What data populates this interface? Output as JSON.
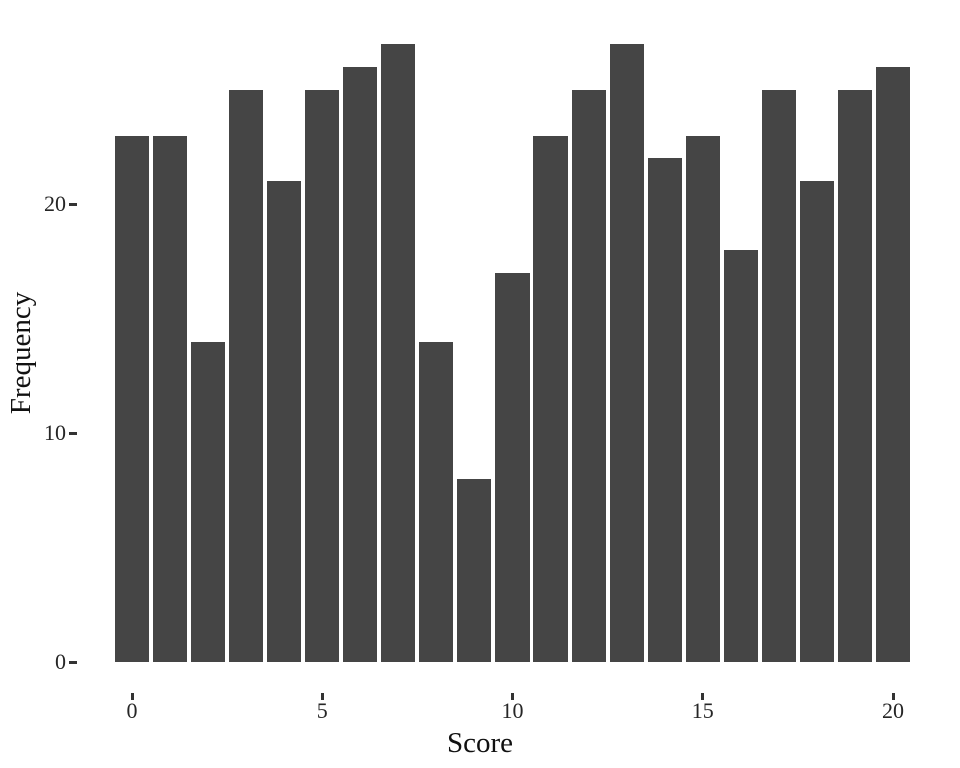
{
  "chart_data": {
    "type": "bar",
    "title": "",
    "xlabel": "Score",
    "ylabel": "Frequency",
    "x": [
      0,
      1,
      2,
      3,
      4,
      5,
      6,
      7,
      8,
      9,
      10,
      11,
      12,
      13,
      14,
      15,
      16,
      17,
      18,
      19,
      20
    ],
    "values": [
      23,
      23,
      14,
      25,
      21,
      25,
      26,
      27,
      14,
      8,
      17,
      23,
      25,
      27,
      22,
      23,
      18,
      25,
      21,
      25,
      26
    ],
    "x_ticks": [
      0,
      5,
      10,
      15,
      20
    ],
    "y_ticks": [
      0,
      10,
      20
    ],
    "xlim": [
      -1.5,
      21.5
    ],
    "ylim": [
      -1.35,
      28.35
    ],
    "bar_width": 0.9,
    "bar_color": "#454545",
    "background_color": "#ffffff",
    "tick_text_color": "#262626",
    "title_text_color": "#111111",
    "grid": "off",
    "legend": "none"
  }
}
